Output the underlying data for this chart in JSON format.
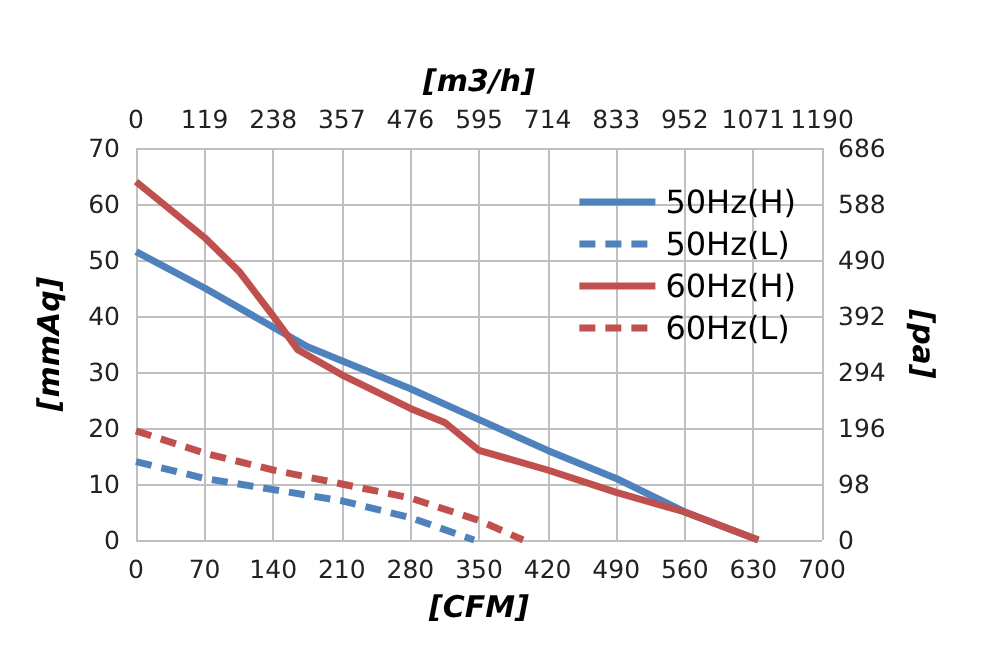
{
  "chart_data": {
    "type": "line",
    "xlabel": "[CFM]",
    "ylabel": "[mmAq]",
    "y2label": "[pa]",
    "x2label": "[m3/h]",
    "xlim": [
      0,
      700
    ],
    "xticks": [
      0,
      70,
      140,
      210,
      280,
      350,
      420,
      490,
      560,
      630,
      700
    ],
    "ylim": [
      0,
      70
    ],
    "yticks": [
      0,
      10,
      20,
      30,
      40,
      50,
      60,
      70
    ],
    "y2lim": [
      0,
      686
    ],
    "y2ticks": [
      0,
      98,
      196,
      294,
      392,
      490,
      588,
      686
    ],
    "x2lim": [
      0,
      1190
    ],
    "x2ticks": [
      0,
      119,
      238,
      357,
      476,
      595,
      714,
      833,
      952,
      1071,
      1190
    ],
    "grid": true,
    "legend": "right",
    "marker": "none",
    "series": [
      {
        "name": "50Hz(H)",
        "color": "#4f81bd",
        "line_style": "solid",
        "x": [
          0,
          70,
          140,
          175,
          210,
          280,
          350,
          420,
          490,
          560,
          635
        ],
        "values": [
          51.5,
          45,
          38,
          34.5,
          32,
          27,
          21.5,
          16,
          11,
          5,
          0
        ]
      },
      {
        "name": "50Hz(L)",
        "color": "#4f81bd",
        "line_style": "dashed",
        "x": [
          0,
          70,
          140,
          210,
          280,
          345
        ],
        "values": [
          14,
          11,
          9,
          7,
          4,
          0
        ]
      },
      {
        "name": "60Hz(H)",
        "color": "#c0504d",
        "line_style": "solid",
        "x": [
          0,
          70,
          105,
          140,
          165,
          210,
          280,
          315,
          350,
          420,
          490,
          560,
          635
        ],
        "values": [
          64,
          54,
          48,
          40,
          34,
          29.5,
          23.5,
          21,
          16,
          12.5,
          8.5,
          5,
          0
        ]
      },
      {
        "name": "60Hz(L)",
        "color": "#c0504d",
        "line_style": "dashed",
        "x": [
          0,
          70,
          140,
          210,
          280,
          350,
          395
        ],
        "values": [
          19.5,
          15.5,
          12.5,
          10,
          7.5,
          3.5,
          0
        ]
      }
    ]
  }
}
